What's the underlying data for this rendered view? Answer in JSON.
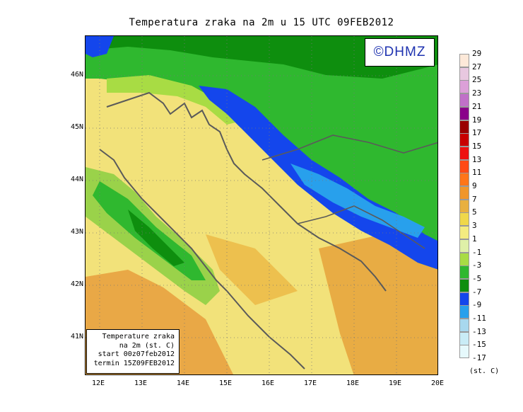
{
  "title": "Temperatura zraka na 2m u 15 UTC 09FEB2012",
  "logo": "©DHMZ",
  "info_box": {
    "line1": "Temperature zraka",
    "line2": "na 2m (st. C)",
    "line3": "start 00z07feb2012",
    "line4": "termin 15Z09FEB2012"
  },
  "axes": {
    "lat_labels": [
      "46N",
      "45N",
      "44N",
      "43N",
      "42N",
      "41N"
    ],
    "lon_labels": [
      "12E",
      "13E",
      "14E",
      "15E",
      "16E",
      "17E",
      "18E",
      "19E",
      "20E"
    ]
  },
  "legend": {
    "labels": [
      "29",
      "27",
      "25",
      "23",
      "21",
      "19",
      "17",
      "15",
      "13",
      "11",
      "9",
      "7",
      "5",
      "3",
      "1",
      "-1",
      "-3",
      "-5",
      "-7",
      "-9",
      "-11",
      "-13",
      "-15",
      "-17"
    ],
    "colors": [
      "#fde9d9",
      "#e8c8e0",
      "#dca0d8",
      "#c070c8",
      "#8a008a",
      "#9a0000",
      "#c80000",
      "#ee1010",
      "#ff4a14",
      "#ff7518",
      "#f0962a",
      "#e8b040",
      "#f0d84a",
      "#f4ec80",
      "#dff0a8",
      "#a8dc44",
      "#2fb82f",
      "#0e8e0e",
      "#1446ec",
      "#28a0ec",
      "#a8d8ee",
      "#c9ecf6",
      "#e6f9fc"
    ],
    "units": "(st. C)"
  }
}
